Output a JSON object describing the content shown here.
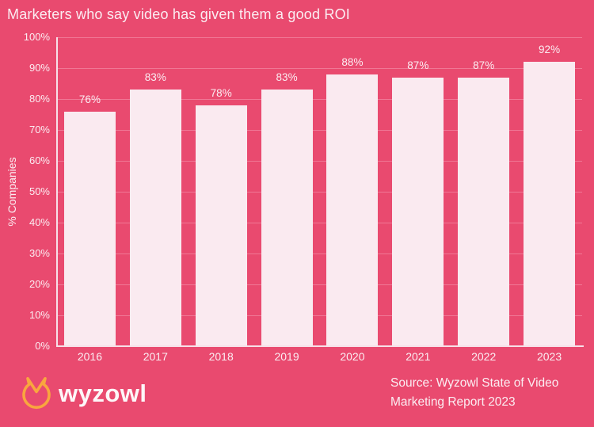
{
  "title": "Marketers who say video has given them a good ROI",
  "chart_data": {
    "type": "bar",
    "title": "Marketers who say video has given them a good ROI",
    "categories": [
      "2016",
      "2017",
      "2018",
      "2019",
      "2020",
      "2021",
      "2022",
      "2023"
    ],
    "values": [
      76,
      83,
      78,
      83,
      88,
      87,
      87,
      92
    ],
    "value_suffix": "%",
    "xlabel": "",
    "ylabel": "% Companies",
    "ylim": [
      0,
      100
    ],
    "yticks": [
      0,
      10,
      20,
      30,
      40,
      50,
      60,
      70,
      80,
      90,
      100
    ],
    "ytick_suffix": "%",
    "grid": "horizontal",
    "legend": "none"
  },
  "colors": {
    "background": "#E94A6F",
    "bar": "#FAEAF0",
    "gridline": "#F07795",
    "axis": "#F7E0E8",
    "text": "#FBEDF2",
    "logo_orange": "#F9A63E"
  },
  "footer": {
    "logo_icon": "wyzowl-owl-icon",
    "logo_text": "wyzowl",
    "source_line1": "Source: Wyzowl State of Video",
    "source_line2": "Marketing Report 2023"
  }
}
